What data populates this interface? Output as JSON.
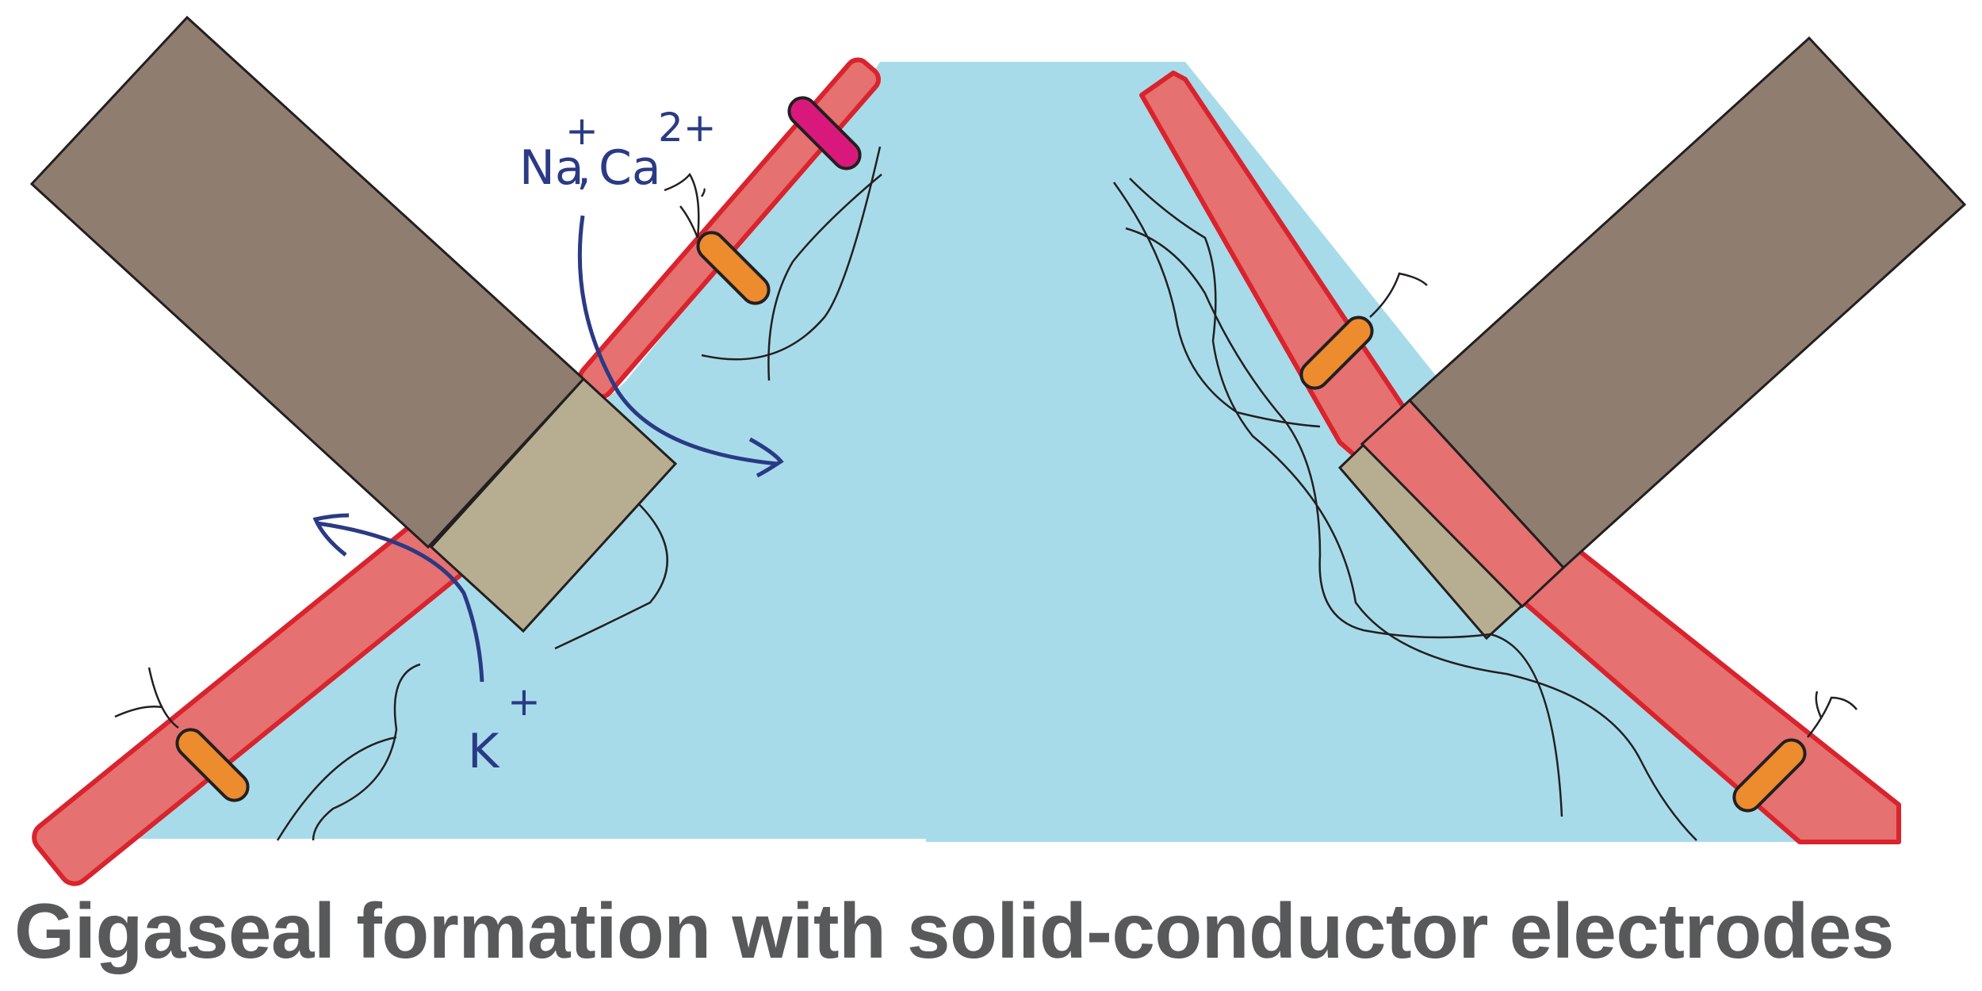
{
  "caption": "Gigaseal formation with solid-conductor electrodes",
  "ion_labels": {
    "na": "Na",
    "na_charge": "+",
    "separator": ",",
    "ca": "Ca",
    "ca_charge": "2+",
    "k": "K",
    "k_charge": "+"
  },
  "colors": {
    "solution": "#a8dbe9",
    "membrane_fill": "#e57170",
    "membrane_stroke": "#d9232d",
    "electrode_body": "#8f7e70",
    "electrode_tip": "#b7ae92",
    "channel": "#ec8c2e",
    "channel_special": "#d9187b",
    "ion_path": "#2a3a85",
    "caption": "#58595b"
  }
}
